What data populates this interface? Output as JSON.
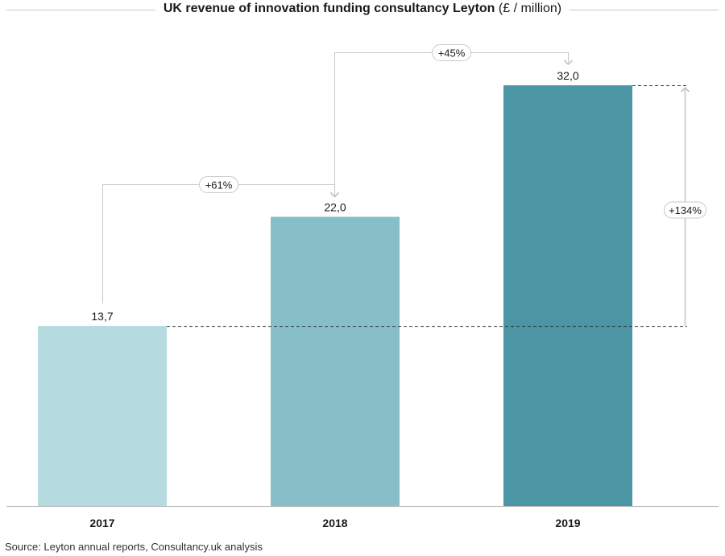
{
  "chart_data": {
    "type": "bar",
    "title": "UK revenue of innovation funding consultancy Leyton",
    "title_unit": "(£ / million)",
    "categories": [
      "2017",
      "2018",
      "2019"
    ],
    "values": [
      13.7,
      22.0,
      32.0
    ],
    "value_labels": [
      "13,7",
      "22,0",
      "32,0"
    ],
    "colors": [
      "#b5dae0",
      "#87bfc9",
      "#4b95a4"
    ],
    "ylim": [
      0,
      35
    ],
    "grid": false,
    "annotations": {
      "growth": [
        {
          "from": "2017",
          "to": "2018",
          "label": "+61%"
        },
        {
          "from": "2018",
          "to": "2019",
          "label": "+45%"
        }
      ],
      "total": {
        "from": "2017",
        "to": "2019",
        "label": "+134%"
      }
    },
    "source": "Source: Leyton annual reports, Consultancy.uk analysis"
  }
}
